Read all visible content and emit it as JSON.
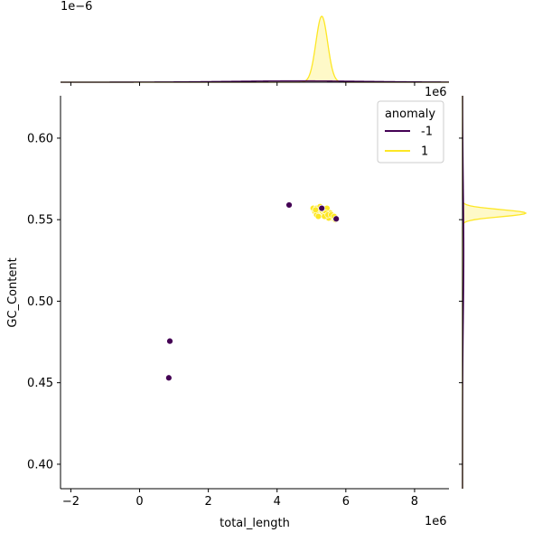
{
  "chart_data": {
    "type": "scatter",
    "title": "",
    "xlabel": "total_length",
    "ylabel": "GC_Content",
    "x_offset_label": "1e6",
    "y_offset_label_top": "1e6",
    "density_offset_label": "1e−6",
    "xlim": [
      -2.3,
      9.0
    ],
    "ylim": [
      0.385,
      0.626
    ],
    "x_ticks": [
      -2,
      0,
      2,
      4,
      6,
      8
    ],
    "x_tick_labels": [
      "−2",
      "0",
      "2",
      "4",
      "6",
      "8"
    ],
    "y_ticks": [
      0.4,
      0.45,
      0.5,
      0.55,
      0.6
    ],
    "y_tick_labels": [
      "0.40",
      "0.45",
      "0.50",
      "0.55",
      "0.60"
    ],
    "grid": false,
    "legend": {
      "title": "anomaly",
      "placement": "top-right",
      "entries": [
        {
          "label": "-1",
          "color": "#440154"
        },
        {
          "label": "1",
          "color": "#fde725"
        }
      ]
    },
    "series": [
      {
        "name": "-1",
        "color": "#440154",
        "x": [
          0.85,
          0.88,
          4.35,
          5.3,
          5.72
        ],
        "y": [
          0.453,
          0.4755,
          0.559,
          0.557,
          0.5505
        ]
      },
      {
        "name": "1",
        "color": "#fde725",
        "x": [
          5.05,
          5.1,
          5.15,
          5.2,
          5.25,
          5.28,
          5.32,
          5.36,
          5.4,
          5.45,
          5.5,
          5.55,
          5.6,
          5.65,
          5.7,
          5.15,
          5.25,
          5.35,
          5.45,
          5.55,
          5.62,
          5.5,
          5.42,
          5.3,
          5.2,
          5.38,
          5.48,
          5.58,
          5.66,
          5.12
        ],
        "y": [
          0.557,
          0.555,
          0.557,
          0.554,
          0.556,
          0.553,
          0.555,
          0.554,
          0.556,
          0.553,
          0.555,
          0.552,
          0.551,
          0.551,
          0.55,
          0.553,
          0.558,
          0.556,
          0.557,
          0.554,
          0.552,
          0.551,
          0.554,
          0.557,
          0.552,
          0.552,
          0.553,
          0.553,
          0.552,
          0.556
        ]
      }
    ],
    "marginal_x": {
      "series": [
        {
          "name": "1",
          "color": "#fde725",
          "center": 5.3,
          "sd": 0.17,
          "peak": 1.0,
          "fill": true
        },
        {
          "name": "-1",
          "color": "#440154",
          "center": 4.6,
          "sd": 2.0,
          "peak": 0.02,
          "fill": false
        }
      ]
    },
    "marginal_y": {
      "series": [
        {
          "name": "1",
          "color": "#fde725",
          "center": 0.554,
          "sd": 0.0022,
          "peak": 1.0,
          "fill": true
        },
        {
          "name": "-1",
          "color": "#440154",
          "center": 0.53,
          "sd": 0.04,
          "peak": 0.02,
          "fill": false
        }
      ]
    }
  }
}
